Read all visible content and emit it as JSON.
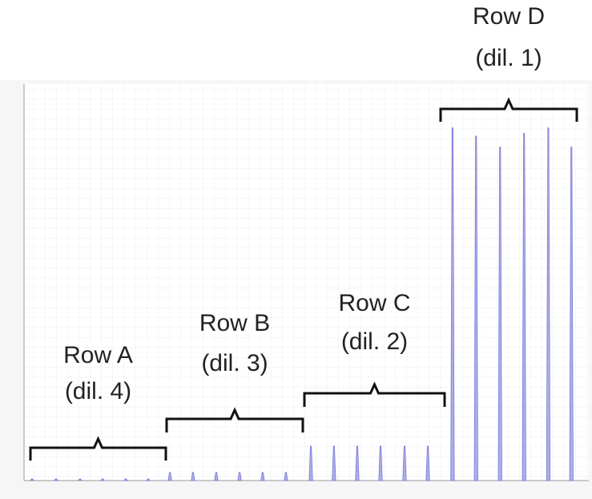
{
  "chart_data": {
    "type": "peaks",
    "xlim": [
      0,
      24
    ],
    "ylim": [
      0,
      1.45
    ],
    "grid": true,
    "series": [
      {
        "color": "#7878d8",
        "x": [
          0.34,
          1.36,
          2.38,
          3.34,
          4.32,
          5.28,
          6.2,
          7.18,
          8.17,
          9.16,
          10.14,
          11.13,
          12.19,
          13.17,
          14.16,
          15.15,
          16.17,
          17.16,
          18.21,
          19.21,
          20.23,
          21.25,
          22.28,
          23.26
        ],
        "values": [
          0.006,
          0.006,
          0.006,
          0.006,
          0.006,
          0.006,
          0.03,
          0.03,
          0.03,
          0.03,
          0.03,
          0.03,
          0.126,
          0.126,
          0.126,
          0.126,
          0.126,
          0.126,
          1.29,
          1.26,
          1.22,
          1.27,
          1.29,
          1.22
        ]
      }
    ],
    "annotations": [
      {
        "lines": [
          "Row A",
          "(dil. 4)"
        ]
      },
      {
        "lines": [
          "Row B",
          "(dil. 3)"
        ]
      },
      {
        "lines": [
          "Row C",
          "(dil. 2)"
        ]
      },
      {
        "lines": [
          "Row D",
          "(dil. 1)"
        ]
      }
    ]
  }
}
